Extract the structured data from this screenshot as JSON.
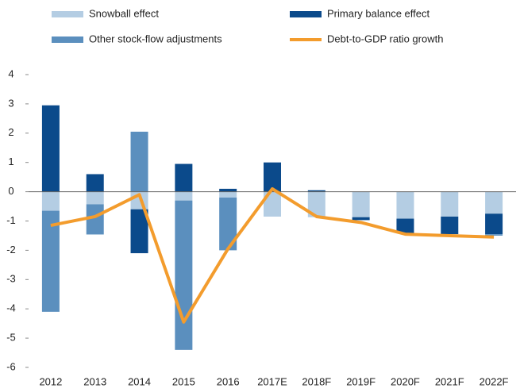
{
  "chart_data": {
    "type": "bar",
    "categories": [
      "2012",
      "2013",
      "2014",
      "2015",
      "2016",
      "2017E",
      "2018F",
      "2019F",
      "2020F",
      "2021F",
      "2022F"
    ],
    "series": [
      {
        "name": "Snowball effect",
        "color": "#b4cde3",
        "values": [
          -0.65,
          -0.43,
          -0.6,
          -0.3,
          -0.2,
          -0.85,
          -0.87,
          -0.87,
          -0.92,
          -0.85,
          -0.75
        ]
      },
      {
        "name": "Primary balance effect",
        "color": "#0b4a8b",
        "values": [
          2.95,
          0.6,
          -1.5,
          0.95,
          0.1,
          1.0,
          0.05,
          -0.1,
          -0.5,
          -0.6,
          -0.7
        ]
      },
      {
        "name": "Other stock-flow adjustments",
        "color": "#5b8fbe",
        "values": [
          -3.45,
          -1.03,
          2.05,
          -5.1,
          -1.8,
          0,
          0,
          0,
          0,
          0,
          -0.05
        ]
      },
      {
        "name": "Debt-to-GDP ratio growth",
        "color": "#f39c2d",
        "type": "line",
        "values": [
          -1.15,
          -0.85,
          -0.1,
          -4.45,
          -1.95,
          0.1,
          -0.85,
          -1.05,
          -1.45,
          -1.5,
          -1.55
        ]
      }
    ],
    "stacked": true,
    "ylim": [
      -6,
      4
    ],
    "yticks": [
      -6,
      -5,
      -4,
      -3,
      -2,
      -1,
      0,
      1,
      2,
      3,
      4
    ],
    "grid": false
  }
}
